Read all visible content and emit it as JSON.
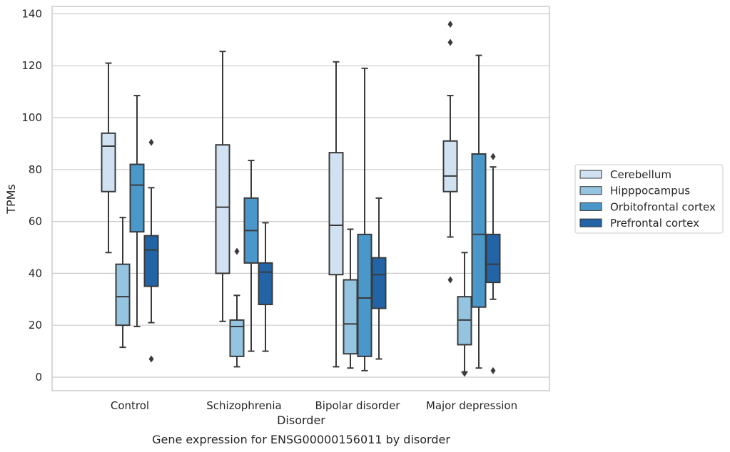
{
  "chart_data": {
    "type": "box",
    "title": "Gene expression for ENSG00000156011 by disorder",
    "xlabel": "Disorder",
    "ylabel": "TPMs",
    "ylim": [
      -5,
      142
    ],
    "yticks": [
      0,
      20,
      40,
      60,
      80,
      100,
      120,
      140
    ],
    "grid": true,
    "legend_position": "right",
    "categories": [
      "Control",
      "Schizophrenia",
      "Bipolar disorder",
      "Major depression"
    ],
    "series": [
      {
        "name": "Cerebellum",
        "color": "#d0e1f2",
        "boxes": [
          {
            "whislo": 48,
            "q1": 71.5,
            "med": 89,
            "q3": 94,
            "whishi": 121,
            "fliers": []
          },
          {
            "whislo": 21.5,
            "q1": 40,
            "med": 65.5,
            "q3": 89.5,
            "whishi": 125.5,
            "fliers": []
          },
          {
            "whislo": 4,
            "q1": 39.5,
            "med": 58.5,
            "q3": 86.5,
            "whishi": 121.5,
            "fliers": []
          },
          {
            "whislo": 54,
            "q1": 71.5,
            "med": 77.5,
            "q3": 91,
            "whishi": 108.5,
            "fliers": [
              37.5,
              129,
              136
            ]
          }
        ]
      },
      {
        "name": "Hipppocampus",
        "color": "#94c4df",
        "boxes": [
          {
            "whislo": 11.5,
            "q1": 20,
            "med": 31,
            "q3": 43.5,
            "whishi": 61.5,
            "fliers": []
          },
          {
            "whislo": 4,
            "q1": 8,
            "med": 19.5,
            "q3": 22,
            "whishi": 31.5,
            "fliers": [
              48.5
            ]
          },
          {
            "whislo": 3.5,
            "q1": 9,
            "med": 20.5,
            "q3": 37.5,
            "whishi": 57,
            "fliers": []
          },
          {
            "whislo": 2,
            "q1": 12.5,
            "med": 22,
            "q3": 31,
            "whishi": 48,
            "fliers": [
              1.5
            ]
          }
        ]
      },
      {
        "name": "Orbitofrontal cortex",
        "color": "#4a98c9",
        "boxes": [
          {
            "whislo": 19.5,
            "q1": 56,
            "med": 74,
            "q3": 82,
            "whishi": 108.5,
            "fliers": []
          },
          {
            "whislo": 10,
            "q1": 44,
            "med": 56.5,
            "q3": 69,
            "whishi": 83.5,
            "fliers": []
          },
          {
            "whislo": 2.5,
            "q1": 8,
            "med": 30.5,
            "q3": 55,
            "whishi": 119,
            "fliers": []
          },
          {
            "whislo": 3.5,
            "q1": 27,
            "med": 55,
            "q3": 86,
            "whishi": 124,
            "fliers": []
          }
        ]
      },
      {
        "name": "Prefrontal cortex",
        "color": "#2264a6",
        "boxes": [
          {
            "whislo": 21,
            "q1": 35,
            "med": 49,
            "q3": 54.5,
            "whishi": 73,
            "fliers": [
              7,
              90.5
            ]
          },
          {
            "whislo": 10,
            "q1": 28,
            "med": 40.5,
            "q3": 44,
            "whishi": 59.5,
            "fliers": []
          },
          {
            "whislo": 7,
            "q1": 26.5,
            "med": 39.5,
            "q3": 46,
            "whishi": 69,
            "fliers": []
          },
          {
            "whislo": 30,
            "q1": 36.5,
            "med": 43.5,
            "q3": 55,
            "whishi": 81,
            "fliers": [
              2.5,
              85
            ]
          }
        ]
      }
    ]
  }
}
